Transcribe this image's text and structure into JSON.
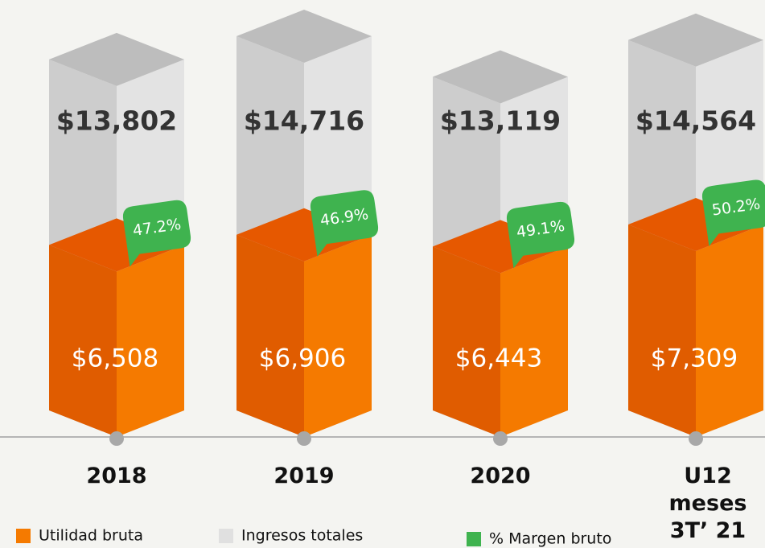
{
  "chart_data": {
    "type": "bar3d",
    "categories": [
      "2018",
      "2019",
      "2020",
      "U12 meses 3T’ 21"
    ],
    "series": [
      {
        "name": "Utilidad bruta",
        "color": "#f57a00",
        "values": [
          6508,
          6906,
          6443,
          7309
        ],
        "value_labels": [
          "$6,508",
          "$6,906",
          "$6,443",
          "$7,309"
        ]
      },
      {
        "name": "Ingresos totales",
        "color": "#e3e3e3",
        "values": [
          13802,
          14716,
          13119,
          14564
        ],
        "value_labels": [
          "$13,802",
          "$14,716",
          "$13,119",
          "$14,564"
        ]
      },
      {
        "name": "% Margen bruto",
        "color": "#3fb34f",
        "values": [
          47.2,
          46.9,
          49.1,
          50.2
        ],
        "value_labels": [
          "47.2%",
          "46.9%",
          "49.1%",
          "50.2%"
        ]
      }
    ]
  }
}
